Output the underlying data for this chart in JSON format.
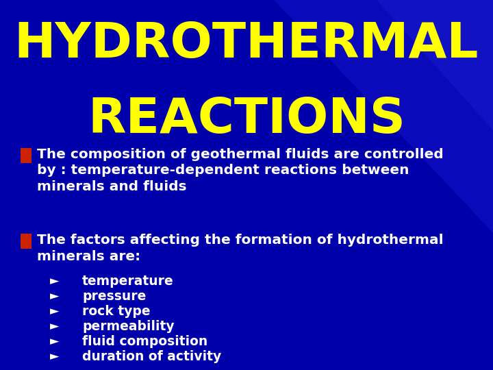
{
  "title_line1": "HYDROTHERMAL",
  "title_line2": "REACTIONS",
  "title_color": "#FFFF00",
  "background_color": "#0000AA",
  "bullet_color": "#CC2200",
  "bullet1_line1": "The composition of geothermal fluids are controlled",
  "bullet1_line2": "by : temperature-dependent reactions between",
  "bullet1_line3": "minerals and fluids",
  "bullet2_line1": "The factors affecting the formation of hydrothermal",
  "bullet2_line2": "minerals are:",
  "sub_items": [
    "temperature",
    "pressure",
    "rock type",
    "permeability",
    "fluid composition",
    "duration of activity"
  ],
  "text_color": "#FFFFFF",
  "title_fontsize": 52,
  "body_fontsize": 14.5,
  "sub_fontsize": 13.5
}
